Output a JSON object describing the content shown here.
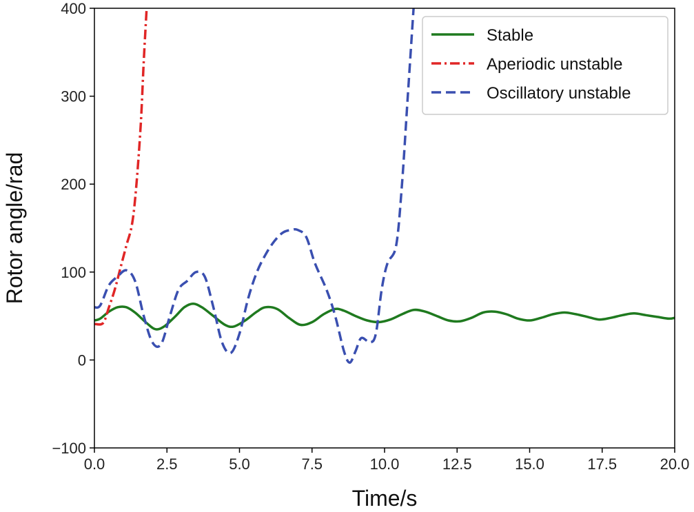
{
  "chart_data": {
    "type": "line",
    "xlabel": "Time/s",
    "ylabel": "Rotor angle/rad",
    "xlim": [
      0,
      20
    ],
    "ylim": [
      -100,
      400
    ],
    "x_ticks": [
      "0.0",
      "2.5",
      "5.0",
      "7.5",
      "10.0",
      "12.5",
      "15.0",
      "17.5",
      "20.0"
    ],
    "y_ticks": [
      "400",
      "300",
      "200",
      "100",
      "0",
      "−100"
    ],
    "grid": false,
    "legend_position": "top-right",
    "series": [
      {
        "name": "Stable",
        "color": "#1f7a1f",
        "style": "solid",
        "x": [
          0,
          0.2,
          0.5,
          0.8,
          1.1,
          1.4,
          1.8,
          2.1,
          2.4,
          2.8,
          3.1,
          3.4,
          3.7,
          4.1,
          4.5,
          4.8,
          5.2,
          5.6,
          5.9,
          6.3,
          6.7,
          7.1,
          7.5,
          7.9,
          8.3,
          8.6,
          9.0,
          9.4,
          9.8,
          10.2,
          10.6,
          11.0,
          11.4,
          11.8,
          12.2,
          12.6,
          13.0,
          13.4,
          13.8,
          14.2,
          14.6,
          15.0,
          15.4,
          15.8,
          16.2,
          16.6,
          17.0,
          17.4,
          17.8,
          18.2,
          18.6,
          19.0,
          19.4,
          19.8,
          20.0
        ],
        "y": [
          45,
          47,
          55,
          60,
          60,
          54,
          42,
          35,
          38,
          50,
          60,
          64,
          60,
          50,
          40,
          38,
          45,
          55,
          60,
          58,
          48,
          40,
          43,
          52,
          58,
          56,
          50,
          45,
          43,
          46,
          52,
          57,
          55,
          50,
          45,
          44,
          48,
          54,
          55,
          52,
          47,
          45,
          48,
          52,
          54,
          52,
          49,
          46,
          48,
          51,
          53,
          51,
          49,
          47,
          48
        ]
      },
      {
        "name": "Aperiodic unstable",
        "color": "#e02626",
        "style": "dashdot",
        "x": [
          0,
          0.3,
          0.5,
          0.7,
          0.9,
          1.1,
          1.3,
          1.45,
          1.6,
          1.7,
          1.8
        ],
        "y": [
          41,
          42,
          60,
          80,
          105,
          130,
          155,
          200,
          270,
          340,
          400
        ]
      },
      {
        "name": "Oscillatory unstable",
        "color": "#3a4fb0",
        "style": "dashed",
        "x": [
          0,
          0.2,
          0.5,
          0.8,
          1.1,
          1.4,
          1.7,
          2.0,
          2.3,
          2.6,
          2.9,
          3.2,
          3.5,
          3.8,
          4.1,
          4.4,
          4.7,
          5.0,
          5.3,
          5.6,
          5.9,
          6.2,
          6.5,
          6.8,
          7.0,
          7.3,
          7.6,
          8.0,
          8.3,
          8.6,
          8.8,
          9.0,
          9.2,
          9.5,
          9.7,
          9.9,
          10.1,
          10.4,
          10.6,
          10.8,
          11.0
        ],
        "y": [
          60,
          62,
          85,
          95,
          102,
          90,
          50,
          20,
          18,
          50,
          80,
          90,
          100,
          95,
          60,
          20,
          8,
          30,
          70,
          100,
          120,
          135,
          145,
          148,
          148,
          140,
          110,
          80,
          50,
          10,
          -3,
          10,
          25,
          20,
          30,
          80,
          110,
          130,
          200,
          300,
          400
        ]
      }
    ]
  }
}
